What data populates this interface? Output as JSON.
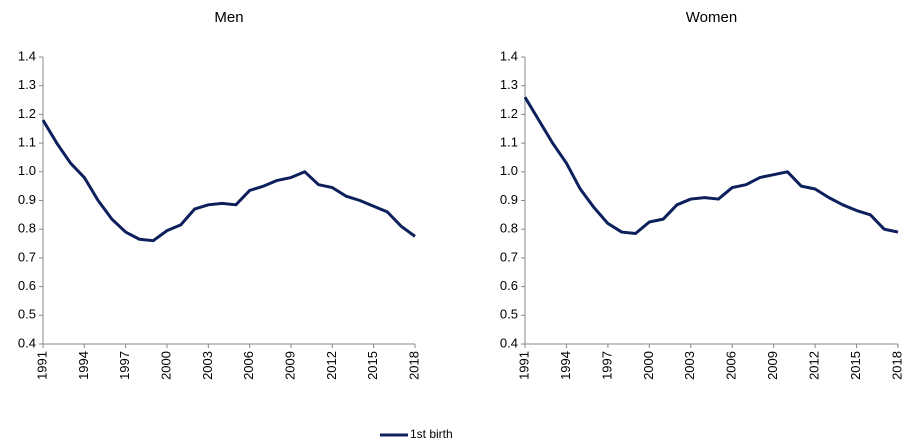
{
  "chart_data": [
    {
      "type": "line",
      "title": "Men",
      "x": [
        1991,
        1992,
        1993,
        1994,
        1995,
        1996,
        1997,
        1998,
        1999,
        2000,
        2001,
        2002,
        2003,
        2004,
        2005,
        2006,
        2007,
        2008,
        2009,
        2010,
        2011,
        2012,
        2013,
        2014,
        2015,
        2016,
        2017,
        2018
      ],
      "series": [
        {
          "name": "1st birth",
          "color": "#0d1f5c",
          "values": [
            1.18,
            1.1,
            1.03,
            0.98,
            0.9,
            0.835,
            0.79,
            0.765,
            0.76,
            0.795,
            0.815,
            0.87,
            0.885,
            0.89,
            0.885,
            0.935,
            0.95,
            0.97,
            0.98,
            1.0,
            0.955,
            0.945,
            0.915,
            0.9,
            0.88,
            0.86,
            0.81,
            0.775
          ]
        }
      ],
      "xlim": [
        1991,
        2018
      ],
      "xticks": [
        1991,
        1994,
        1997,
        2000,
        2003,
        2006,
        2009,
        2012,
        2015,
        2018
      ],
      "ylim": [
        0.4,
        1.4
      ],
      "yticks": [
        0.4,
        0.5,
        0.6,
        0.7,
        0.8,
        0.9,
        {
          "value": 1,
          "label": "1.0"
        },
        1.1,
        1.2,
        1.3,
        1.4
      ]
    },
    {
      "type": "line",
      "title": "Women",
      "x": [
        1991,
        1992,
        1993,
        1994,
        1995,
        1996,
        1997,
        1998,
        1999,
        2000,
        2001,
        2002,
        2003,
        2004,
        2005,
        2006,
        2007,
        2008,
        2009,
        2010,
        2011,
        2012,
        2013,
        2014,
        2015,
        2016,
        2017,
        2018
      ],
      "series": [
        {
          "color": "#0d1f5c",
          "values": [
            1.26,
            1.18,
            1.1,
            1.03,
            0.94,
            0.875,
            0.82,
            0.79,
            0.785,
            0.825,
            0.835,
            0.885,
            0.905,
            0.91,
            0.905,
            0.945,
            0.955,
            0.98,
            0.99,
            1.0,
            0.95,
            0.94,
            0.91,
            0.885,
            0.865,
            0.85,
            0.8,
            0.79
          ]
        }
      ],
      "xlim": [
        1991,
        2018
      ],
      "xticks": [
        1991,
        1994,
        1997,
        2000,
        2003,
        2006,
        2009,
        2012,
        2015,
        2018
      ],
      "ylim": [
        0.4,
        1.4
      ],
      "yticks": [
        0.4,
        0.5,
        0.6,
        0.7,
        0.8,
        0.9,
        {
          "value": 1,
          "label": "1.0"
        },
        1.1,
        1.2,
        1.3,
        1.4
      ]
    }
  ]
}
